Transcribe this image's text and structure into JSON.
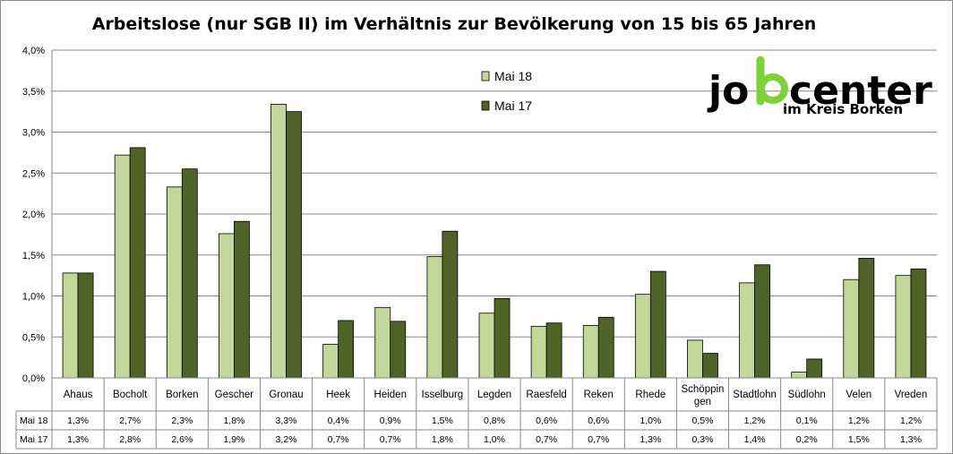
{
  "chart_data": {
    "type": "bar",
    "title": "Arbeitslose (nur SGB II) im Verhältnis zur Bevölkerung von 15 bis 65 Jahren",
    "categories": [
      "Ahaus",
      "Bocholt",
      "Borken",
      "Gescher",
      "Gronau",
      "Heek",
      "Heiden",
      "Isselburg",
      "Legden",
      "Raesfeld",
      "Reken",
      "Rhede",
      "Schöppingen",
      "Stadtlohn",
      "Südlohn",
      "Velen",
      "Vreden"
    ],
    "category_lines": [
      [
        "Ahaus"
      ],
      [
        "Bocholt"
      ],
      [
        "Borken"
      ],
      [
        "Gescher"
      ],
      [
        "Gronau"
      ],
      [
        "Heek"
      ],
      [
        "Heiden"
      ],
      [
        "Isselburg"
      ],
      [
        "Legden"
      ],
      [
        "Raesfeld"
      ],
      [
        "Reken"
      ],
      [
        "Rhede"
      ],
      [
        "Schöppin",
        "gen"
      ],
      [
        "Stadtlohn"
      ],
      [
        "Südlohn"
      ],
      [
        "Velen"
      ],
      [
        "Vreden"
      ]
    ],
    "series": [
      {
        "name": "Mai 18",
        "color": "#c4d79b",
        "values": [
          1.28,
          2.72,
          2.33,
          1.76,
          3.34,
          0.41,
          0.86,
          1.48,
          0.79,
          0.63,
          0.64,
          1.02,
          0.46,
          1.16,
          0.07,
          1.2,
          1.25
        ],
        "labels": [
          "1,3%",
          "2,7%",
          "2,3%",
          "1,8%",
          "3,3%",
          "0,4%",
          "0,9%",
          "1,5%",
          "0,8%",
          "0,6%",
          "0,6%",
          "1,0%",
          "0,5%",
          "1,2%",
          "0,1%",
          "1,2%",
          "1,2%"
        ]
      },
      {
        "name": "Mai 17",
        "color": "#4f6228",
        "values": [
          1.28,
          2.81,
          2.55,
          1.91,
          3.25,
          0.7,
          0.69,
          1.79,
          0.97,
          0.67,
          0.74,
          1.3,
          0.3,
          1.38,
          0.23,
          1.46,
          1.33
        ],
        "labels": [
          "1,3%",
          "2,8%",
          "2,6%",
          "1,9%",
          "3,2%",
          "0,7%",
          "0,7%",
          "1,8%",
          "1,0%",
          "0,7%",
          "0,7%",
          "1,3%",
          "0,3%",
          "1,4%",
          "0,2%",
          "1,5%",
          "1,3%"
        ]
      }
    ],
    "ylim": [
      0,
      4
    ],
    "yticks": [
      0,
      0.5,
      1,
      1.5,
      2,
      2.5,
      3,
      3.5,
      4
    ],
    "ytick_labels": [
      "0,0%",
      "0,5%",
      "1,0%",
      "1,5%",
      "2,0%",
      "2,5%",
      "3,0%",
      "3,5%",
      "4,0%"
    ],
    "grid": true,
    "legend_position": "top-center",
    "data_table": true
  },
  "logo": {
    "word_part1": "jo",
    "word_part2": "center",
    "subtitle": "im Kreis Borken",
    "accent_color": "#7fd13b"
  }
}
